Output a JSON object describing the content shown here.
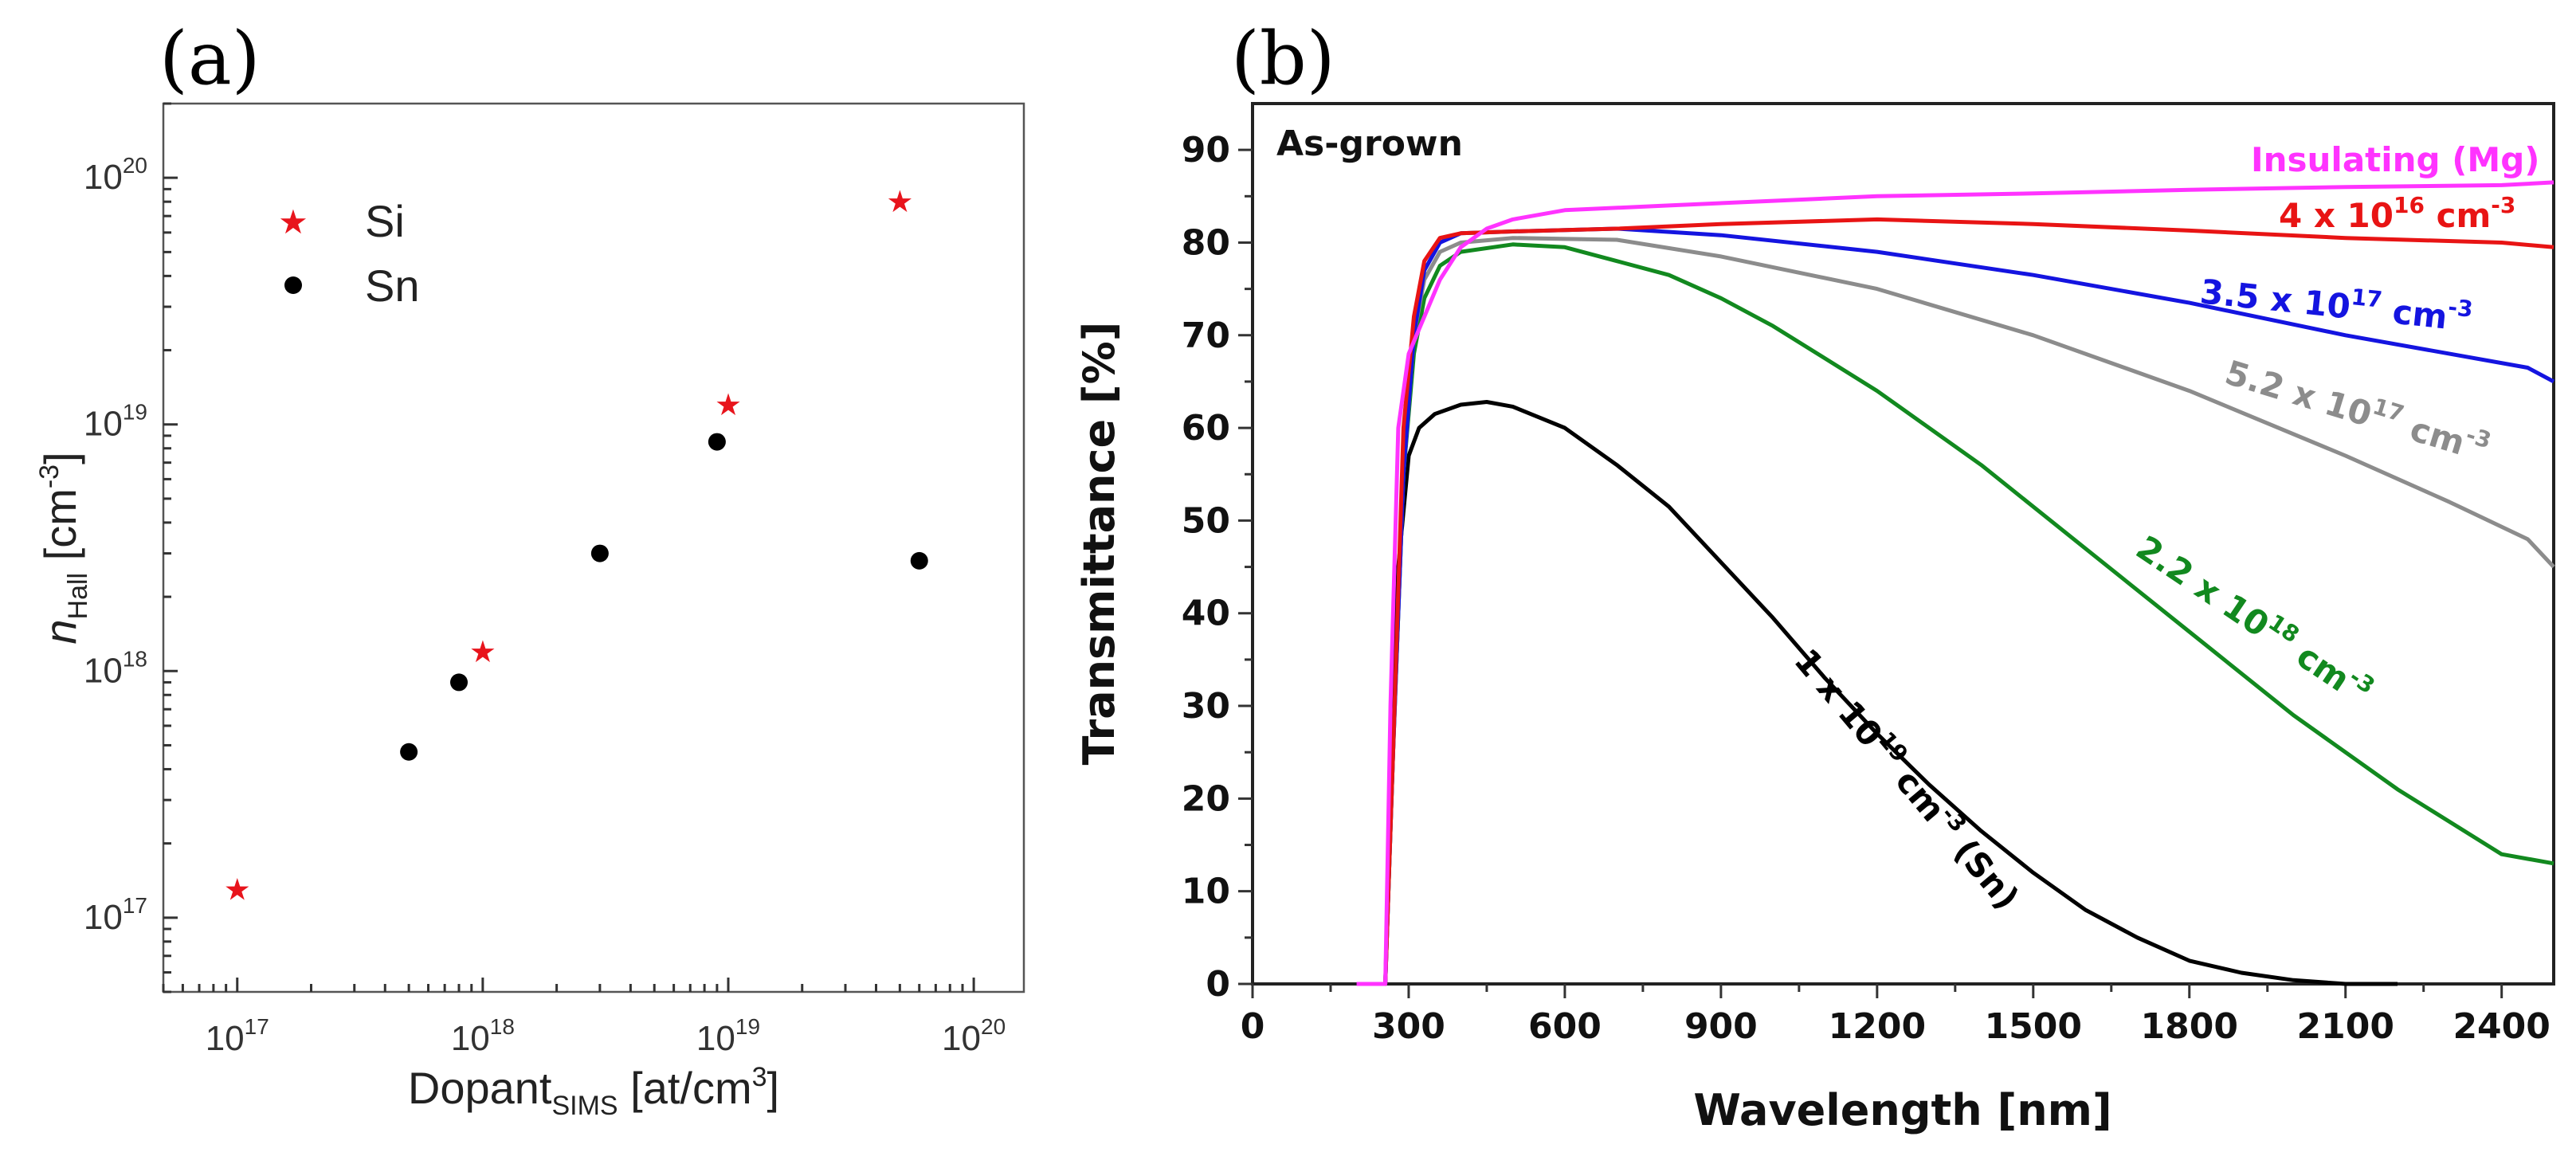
{
  "panels": [
    {
      "label": "(a)"
    },
    {
      "label": "(b)"
    }
  ],
  "chart_data": [
    {
      "type": "scatter",
      "panel": "(a)",
      "xscale": "log",
      "yscale": "log",
      "xlim": [
        5e+16,
        1.6e+20
      ],
      "ylim": [
        5e+16,
        2e+20
      ],
      "x_ticks": [
        {
          "value": 1e+17,
          "base": "10",
          "exp": "17"
        },
        {
          "value": 1e+18,
          "base": "10",
          "exp": "18"
        },
        {
          "value": 1e+19,
          "base": "10",
          "exp": "19"
        },
        {
          "value": 1e+20,
          "base": "10",
          "exp": "20"
        }
      ],
      "y_ticks": [
        {
          "value": 1e+17,
          "base": "10",
          "exp": "17"
        },
        {
          "value": 1e+18,
          "base": "10",
          "exp": "18"
        },
        {
          "value": 1e+19,
          "base": "10",
          "exp": "19"
        },
        {
          "value": 1e+20,
          "base": "10",
          "exp": "20"
        }
      ],
      "xlabel": {
        "main": "Dopant",
        "sub": "SIMS",
        "unit": " [at/cm",
        "unit_sup": "3",
        "unit_end": "]"
      },
      "ylabel": {
        "main": "n",
        "sub": "Hall",
        "unit": " [cm",
        "unit_sup": "-3",
        "unit_end": "]"
      },
      "legend_position": "top-left",
      "series": [
        {
          "name": "Si",
          "marker": "star",
          "color": "#e8141c",
          "x": [
            1e+17,
            1e+18,
            1e+19,
            5e+19
          ],
          "y": [
            1.3e+17,
            1.2e+18,
            1.2e+19,
            8e+19
          ]
        },
        {
          "name": "Sn",
          "marker": "circle",
          "color": "#000000",
          "x": [
            5e+17,
            8e+17,
            3e+18,
            9e+18,
            6e+19
          ],
          "y": [
            4.7e+17,
            9e+17,
            3e+18,
            8.5e+18,
            2.8e+18
          ]
        }
      ]
    },
    {
      "type": "line",
      "panel": "(b)",
      "title": "As-grown",
      "xlabel": "Wavelength [nm]",
      "ylabel": "Transmittance [%]",
      "xlim": [
        0,
        2500
      ],
      "ylim": [
        0,
        95
      ],
      "x_ticks": [
        0,
        300,
        600,
        900,
        1200,
        1500,
        1800,
        2100,
        2400
      ],
      "y_ticks": [
        0,
        10,
        20,
        30,
        40,
        50,
        60,
        70,
        80,
        90
      ],
      "series": [
        {
          "name": "Insulating (Mg)",
          "label_parts": [
            "Insulating (Mg)"
          ],
          "color": "#ff33ff",
          "x": [
            200,
            255,
            265,
            280,
            300,
            330,
            360,
            400,
            450,
            500,
            600,
            800,
            1000,
            1200,
            1500,
            1800,
            2100,
            2400,
            2500
          ],
          "y": [
            0,
            0,
            30,
            60,
            68,
            72,
            76,
            79.5,
            81.5,
            82.5,
            83.5,
            84,
            84.5,
            85,
            85.3,
            85.7,
            86,
            86.2,
            86.5
          ]
        },
        {
          "name": "4 x 10^16 cm^-3",
          "label_parts": [
            "4 x 10",
            "16",
            " cm",
            "-3"
          ],
          "color": "#e81414",
          "x": [
            230,
            255,
            270,
            290,
            310,
            330,
            360,
            400,
            500,
            700,
            900,
            1200,
            1500,
            1800,
            2100,
            2400,
            2500
          ],
          "y": [
            0,
            0,
            25,
            60,
            72,
            78,
            80.5,
            81,
            81.2,
            81.5,
            82,
            82.5,
            82,
            81.3,
            80.5,
            80,
            79.5
          ]
        },
        {
          "name": "3.5 x 10^17 cm^-3",
          "label_parts": [
            "3.5 x 10",
            "17",
            " cm",
            "-3"
          ],
          "color": "#1414e0",
          "x": [
            230,
            255,
            270,
            290,
            310,
            330,
            360,
            400,
            500,
            700,
            900,
            1200,
            1500,
            1800,
            2100,
            2300,
            2450,
            2500
          ],
          "y": [
            0,
            0,
            25,
            55,
            70,
            77,
            80,
            81,
            81.2,
            81.5,
            80.8,
            79,
            76.5,
            73.5,
            70,
            68,
            66.5,
            65
          ]
        },
        {
          "name": "5.2 x 10^17 cm^-3",
          "label_parts": [
            "5.2 x 10",
            "17",
            " cm",
            "-3"
          ],
          "color": "#8c8c8c",
          "x": [
            230,
            255,
            270,
            290,
            310,
            330,
            360,
            400,
            500,
            700,
            900,
            1200,
            1500,
            1800,
            2100,
            2300,
            2450,
            2500
          ],
          "y": [
            0,
            0,
            25,
            55,
            70,
            76,
            79,
            80,
            80.5,
            80.3,
            78.5,
            75,
            70,
            64,
            57,
            52,
            48,
            45
          ]
        },
        {
          "name": "2.2 x 10^18 cm^-3",
          "label_parts": [
            "2.2 x 10",
            "18",
            " cm",
            "-3"
          ],
          "color": "#12891f",
          "x": [
            230,
            255,
            270,
            290,
            310,
            330,
            360,
            400,
            500,
            600,
            700,
            800,
            900,
            1000,
            1200,
            1400,
            1600,
            1800,
            2000,
            2200,
            2400,
            2500
          ],
          "y": [
            0,
            0,
            25,
            55,
            68,
            74,
            77.5,
            79,
            79.8,
            79.5,
            78,
            76.5,
            74,
            71,
            64,
            56,
            47,
            38,
            29,
            21,
            14,
            13
          ]
        },
        {
          "name": "1 x 10^19 cm^-3 (Sn)",
          "label_parts": [
            "1 x 10",
            "19",
            " cm",
            "-3",
            " (Sn)"
          ],
          "color": "#000000",
          "x": [
            230,
            255,
            265,
            280,
            300,
            320,
            350,
            400,
            450,
            500,
            600,
            700,
            800,
            900,
            1000,
            1100,
            1200,
            1300,
            1400,
            1500,
            1600,
            1700,
            1800,
            1900,
            2000,
            2100,
            2200
          ],
          "y": [
            0,
            0,
            20,
            45,
            57,
            60,
            61.5,
            62.5,
            62.8,
            62.3,
            60,
            56,
            51.5,
            45.5,
            39.5,
            33,
            27,
            21.5,
            16.5,
            12,
            8,
            5,
            2.5,
            1.2,
            0.4,
            0,
            0
          ]
        }
      ]
    }
  ]
}
